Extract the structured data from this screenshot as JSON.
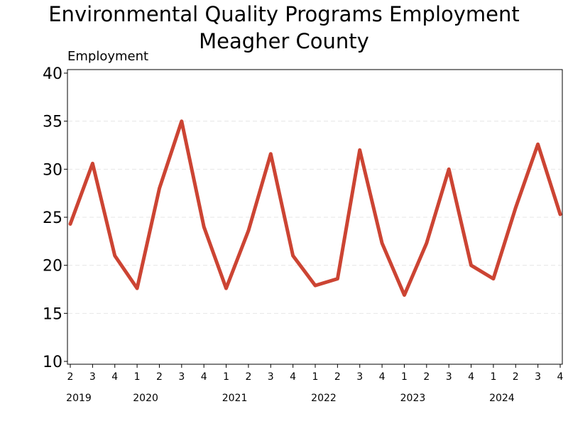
{
  "chart_data": {
    "type": "line",
    "title": "Environmental Quality Programs Employment",
    "subtitle": "Meagher County",
    "ylabel": "Employment",
    "xlabel": "",
    "ylim": [
      10,
      40
    ],
    "yticks": [
      10,
      15,
      20,
      25,
      30,
      35,
      40
    ],
    "grid": "horizontal-dashed",
    "x": [
      "2019 Q2",
      "2019 Q3",
      "2019 Q4",
      "2020 Q1",
      "2020 Q2",
      "2020 Q3",
      "2020 Q4",
      "2021 Q1",
      "2021 Q2",
      "2021 Q3",
      "2021 Q4",
      "2022 Q1",
      "2022 Q2",
      "2022 Q3",
      "2022 Q4",
      "2023 Q1",
      "2023 Q2",
      "2023 Q3",
      "2023 Q4",
      "2024 Q1",
      "2024 Q2",
      "2024 Q3",
      "2024 Q4"
    ],
    "quarter_labels": [
      "2",
      "3",
      "4",
      "1",
      "2",
      "3",
      "4",
      "1",
      "2",
      "3",
      "4",
      "1",
      "2",
      "3",
      "4",
      "1",
      "2",
      "3",
      "4",
      "1",
      "2",
      "3",
      "4"
    ],
    "years": [
      {
        "label": "2019",
        "index": 0
      },
      {
        "label": "2020",
        "index": 3
      },
      {
        "label": "2021",
        "index": 7
      },
      {
        "label": "2022",
        "index": 11
      },
      {
        "label": "2023",
        "index": 15
      },
      {
        "label": "2024",
        "index": 19
      }
    ],
    "series": [
      {
        "name": "Employment",
        "color": "#cc4433",
        "values": [
          24.3,
          30.6,
          21.0,
          17.6,
          28.0,
          35.0,
          24.0,
          17.6,
          23.6,
          31.6,
          21.0,
          17.9,
          18.6,
          32.0,
          22.3,
          16.9,
          22.3,
          30.0,
          20.0,
          18.6,
          26.0,
          32.6,
          25.3
        ]
      }
    ]
  }
}
